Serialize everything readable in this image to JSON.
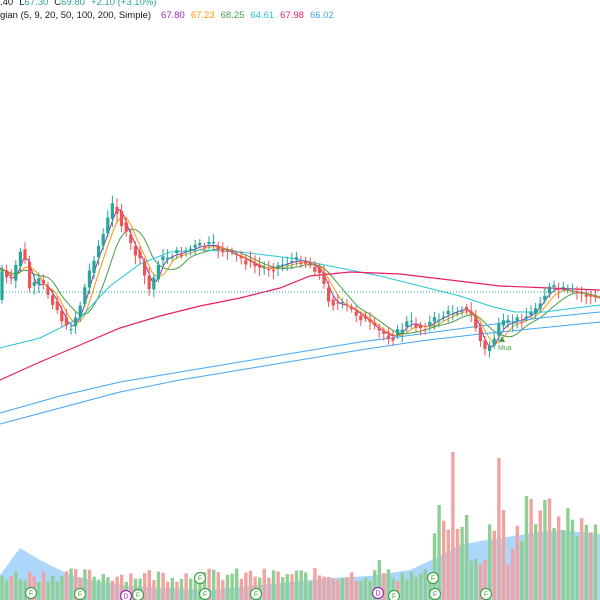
{
  "legend": {
    "ohlc": {
      "low_prefix": "L",
      "low": "67.30",
      "close_prefix": "C",
      "close": "69.80",
      "change": "+2.10 (+3.10%)",
      "partial_high": ".40",
      "color": "#26a69a"
    },
    "ma": {
      "label": "gian (5, 9, 20, 50, 100, 200, Simple)",
      "values": [
        {
          "value": "67.80",
          "color": "#9c27b0"
        },
        {
          "value": "67.23",
          "color": "#ff9800"
        },
        {
          "value": "68.25",
          "color": "#43a047"
        },
        {
          "value": "64.61",
          "color": "#26c6da"
        },
        {
          "value": "67.98",
          "color": "#e91e63"
        },
        {
          "value": "66.02",
          "color": "#42a5f5"
        }
      ]
    }
  },
  "colors": {
    "up": "#26a69a",
    "down": "#ef5350",
    "vol_up": "#8fcf93",
    "vol_down": "#f0a3a1",
    "vol_area": "#90caf9",
    "ma5": "#9c27b0",
    "ma9": "#ff9800",
    "ma20": "#43a047",
    "ma50": "#26c6da",
    "ma100": "#e91e63",
    "ma200": "#42a5f5",
    "last_price_line": "#26a69a"
  },
  "markers": {
    "events": [
      "F",
      "F",
      "D",
      "F",
      "F",
      "F",
      "F",
      "D",
      "F",
      "F",
      "F",
      "F"
    ],
    "signal_label": "Mua"
  }
}
